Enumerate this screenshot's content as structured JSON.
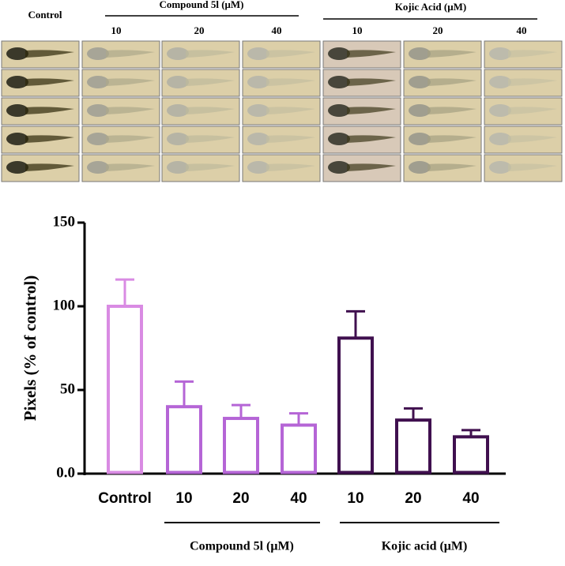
{
  "image_panel": {
    "control_label": "Control",
    "group_titles": [
      "Compound 5l (μM)",
      "Kojic Acid (μM)"
    ],
    "doses": [
      "10",
      "20",
      "40",
      "10",
      "20",
      "40"
    ]
  },
  "chart_data": {
    "type": "bar",
    "y_label": "Pixels (% of control)",
    "categories": [
      "Control",
      "10",
      "20",
      "40",
      "10",
      "20",
      "40"
    ],
    "values": [
      100,
      40,
      33,
      29,
      81,
      32,
      22
    ],
    "errors": [
      16,
      15,
      8,
      7,
      16,
      7,
      4
    ],
    "colors": [
      "#d98be3",
      "#b565d6",
      "#b565d6",
      "#b565d6",
      "#40104f",
      "#40104f",
      "#40104f"
    ],
    "group_labels": [
      "Compound 5l (μM)",
      "Kojic acid (μM)"
    ],
    "ylim": [
      0,
      150
    ],
    "yticks": [
      {
        "value": 0,
        "label": "0.0"
      },
      50,
      100,
      150
    ]
  }
}
